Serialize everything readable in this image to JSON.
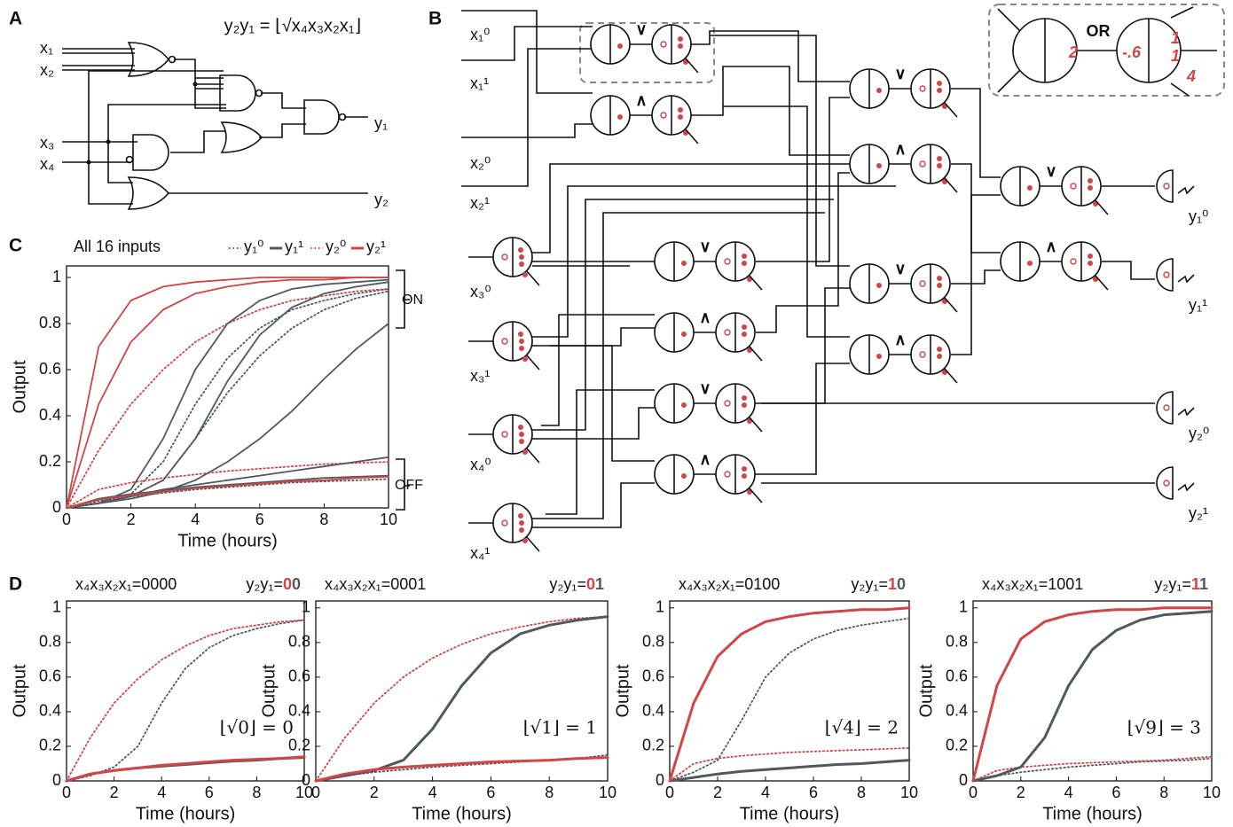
{
  "panel_labels": [
    "A",
    "B",
    "C",
    "D"
  ],
  "diagram_a": {
    "formula": "y₂y₁ = ⌊√x₄x₃x₂x₁⌋",
    "inputs": [
      "x₁",
      "x₂",
      "x₃",
      "x₄"
    ],
    "outputs": [
      "y₁",
      "y₂"
    ]
  },
  "diagram_b": {
    "inputs": [
      "x₁⁰",
      "x₁¹",
      "x₂⁰",
      "x₂¹",
      "x₃⁰",
      "x₃¹",
      "x₄⁰",
      "x₄¹"
    ],
    "outputs": [
      "y₁⁰",
      "y₁¹",
      "y₂⁰",
      "y₂¹"
    ],
    "gate_symbols": [
      "∨",
      "∧",
      "∨",
      "∧",
      "∨",
      "∧",
      "∨",
      "∧",
      "∨",
      "∧",
      "∨",
      "∧"
    ],
    "inset": {
      "title": "OR",
      "weights": [
        "2",
        "-.6",
        "1",
        "1",
        "4"
      ]
    }
  },
  "chart_data": [
    {
      "type": "line",
      "title": "All 16 inputs",
      "xlabel": "Time (hours)",
      "ylabel": "Output",
      "x": [
        0,
        1,
        2,
        3,
        4,
        5,
        6,
        7,
        8,
        9,
        10
      ],
      "xlim": [
        0,
        10
      ],
      "ylim": [
        0,
        1.05
      ],
      "xticks": [
        0,
        2,
        4,
        6,
        8,
        10
      ],
      "yticks": [
        0,
        0.2,
        0.4,
        0.6,
        0.8,
        1
      ],
      "annotations": [
        "ON",
        "OFF"
      ],
      "series": [
        {
          "name": "y₁⁰",
          "color": "#505860",
          "dash": "dotted",
          "curves": [
            [
              0,
              0.02,
              0.06,
              0.2,
              0.45,
              0.65,
              0.78,
              0.86,
              0.9,
              0.93,
              0.95
            ],
            [
              0,
              0.02,
              0.05,
              0.12,
              0.3,
              0.5,
              0.66,
              0.78,
              0.86,
              0.91,
              0.94
            ],
            [
              0,
              0.03,
              0.05,
              0.065,
              0.08,
              0.09,
              0.1,
              0.11,
              0.115,
              0.12,
              0.125
            ]
          ]
        },
        {
          "name": "y₁¹",
          "color": "#505860",
          "dash": "solid",
          "curves": [
            [
              0,
              0.02,
              0.08,
              0.3,
              0.6,
              0.8,
              0.9,
              0.95,
              0.97,
              0.98,
              0.99
            ],
            [
              0,
              0.02,
              0.05,
              0.12,
              0.3,
              0.55,
              0.75,
              0.87,
              0.93,
              0.96,
              0.98
            ],
            [
              0,
              0.02,
              0.04,
              0.07,
              0.12,
              0.2,
              0.3,
              0.42,
              0.56,
              0.69,
              0.8
            ],
            [
              0,
              0.04,
              0.06,
              0.075,
              0.09,
              0.1,
              0.11,
              0.12,
              0.13,
              0.135,
              0.14
            ],
            [
              0,
              0.02,
              0.05,
              0.08,
              0.1,
              0.12,
              0.14,
              0.16,
              0.18,
              0.2,
              0.22
            ]
          ]
        },
        {
          "name": "y₂⁰",
          "color": "#d04545",
          "dash": "dotted",
          "curves": [
            [
              0,
              0.25,
              0.45,
              0.6,
              0.72,
              0.8,
              0.86,
              0.9,
              0.92,
              0.94,
              0.95
            ],
            [
              0,
              0.08,
              0.11,
              0.13,
              0.145,
              0.16,
              0.17,
              0.18,
              0.19,
              0.195,
              0.2
            ]
          ]
        },
        {
          "name": "y₂¹",
          "color": "#d04545",
          "dash": "solid",
          "curves": [
            [
              0,
              0.7,
              0.9,
              0.96,
              0.98,
              0.99,
              1,
              1,
              1,
              1,
              1
            ],
            [
              0,
              0.45,
              0.72,
              0.86,
              0.93,
              0.96,
              0.98,
              0.99,
              0.99,
              1,
              1
            ],
            [
              0,
              0.035,
              0.055,
              0.07,
              0.085,
              0.095,
              0.105,
              0.115,
              0.12,
              0.13,
              0.135
            ]
          ]
        }
      ]
    },
    {
      "type": "line",
      "title": "x₄x₃x₂x₁=0000",
      "result_label": "y₂y₁=",
      "result_digits": [
        {
          "text": "0",
          "color": "#d04545"
        },
        {
          "text": "0",
          "color": "#505860"
        }
      ],
      "annotation": "⌊√0⌋ = 0",
      "xlabel": "Time (hours)",
      "ylabel": "Output",
      "x": [
        0,
        1,
        2,
        3,
        4,
        5,
        6,
        7,
        8,
        9,
        10
      ],
      "xlim": [
        0,
        10
      ],
      "ylim": [
        0,
        1.04
      ],
      "xticks": [
        0,
        2,
        4,
        6,
        8,
        10
      ],
      "yticks": [
        0,
        0.2,
        0.4,
        0.6,
        0.8,
        1
      ],
      "series": [
        {
          "color": "#505860",
          "dash": "dotted",
          "values": [
            0,
            0.03,
            0.08,
            0.2,
            0.45,
            0.65,
            0.77,
            0.84,
            0.88,
            0.91,
            0.93
          ]
        },
        {
          "color": "#d04545",
          "dash": "dotted",
          "values": [
            0,
            0.25,
            0.45,
            0.59,
            0.7,
            0.78,
            0.84,
            0.88,
            0.9,
            0.92,
            0.93
          ]
        },
        {
          "color": "#505860",
          "dash": "solid",
          "values": [
            0,
            0.04,
            0.06,
            0.075,
            0.085,
            0.095,
            0.105,
            0.115,
            0.12,
            0.13,
            0.135
          ]
        },
        {
          "color": "#d04545",
          "dash": "solid",
          "values": [
            0,
            0.04,
            0.06,
            0.075,
            0.09,
            0.1,
            0.11,
            0.12,
            0.125,
            0.13,
            0.14
          ]
        }
      ]
    },
    {
      "type": "line",
      "title": "x₄x₃x₂x₁=0001",
      "result_label": "y₂y₁=",
      "result_digits": [
        {
          "text": "0",
          "color": "#d04545"
        },
        {
          "text": "1",
          "color": "#505860"
        }
      ],
      "annotation": "⌊√1⌋ = 1",
      "xlabel": "Time (hours)",
      "ylabel": "Output",
      "x": [
        0,
        1,
        2,
        3,
        4,
        5,
        6,
        7,
        8,
        9,
        10
      ],
      "xlim": [
        0,
        10
      ],
      "ylim": [
        0,
        1.04
      ],
      "xticks": [
        0,
        2,
        4,
        6,
        8,
        10
      ],
      "yticks": [
        0,
        0.2,
        0.4,
        0.6,
        0.8,
        1
      ],
      "series": [
        {
          "color": "#505860",
          "dash": "dotted",
          "values": [
            0,
            0.03,
            0.05,
            0.065,
            0.08,
            0.09,
            0.1,
            0.11,
            0.12,
            0.13,
            0.15
          ]
        },
        {
          "color": "#d04545",
          "dash": "dotted",
          "values": [
            0,
            0.25,
            0.45,
            0.6,
            0.71,
            0.79,
            0.85,
            0.89,
            0.92,
            0.94,
            0.95
          ]
        },
        {
          "color": "#505860",
          "dash": "solid",
          "values": [
            0,
            0.03,
            0.06,
            0.12,
            0.3,
            0.55,
            0.74,
            0.85,
            0.9,
            0.93,
            0.95
          ]
        },
        {
          "color": "#d04545",
          "dash": "solid",
          "values": [
            0,
            0.04,
            0.065,
            0.08,
            0.09,
            0.1,
            0.11,
            0.115,
            0.12,
            0.13,
            0.135
          ]
        }
      ]
    },
    {
      "type": "line",
      "title": "x₄x₃x₂x₁=0100",
      "result_label": "y₂y₁=",
      "result_digits": [
        {
          "text": "1",
          "color": "#d04545"
        },
        {
          "text": "0",
          "color": "#505860"
        }
      ],
      "annotation": "⌊√4⌋ = 2",
      "xlabel": "Time (hours)",
      "ylabel": "Output",
      "x": [
        0,
        1,
        2,
        3,
        4,
        5,
        6,
        7,
        8,
        9,
        10
      ],
      "xlim": [
        0,
        10
      ],
      "ylim": [
        0,
        1.04
      ],
      "xticks": [
        0,
        2,
        4,
        6,
        8,
        10
      ],
      "yticks": [
        0,
        0.2,
        0.4,
        0.6,
        0.8,
        1
      ],
      "series": [
        {
          "color": "#505860",
          "dash": "dotted",
          "values": [
            0,
            0.05,
            0.12,
            0.35,
            0.6,
            0.74,
            0.82,
            0.87,
            0.9,
            0.92,
            0.94
          ]
        },
        {
          "color": "#d04545",
          "dash": "dotted",
          "values": [
            0,
            0.1,
            0.13,
            0.145,
            0.155,
            0.165,
            0.17,
            0.175,
            0.18,
            0.185,
            0.19
          ]
        },
        {
          "color": "#505860",
          "dash": "solid",
          "values": [
            0,
            0.02,
            0.04,
            0.055,
            0.065,
            0.075,
            0.085,
            0.095,
            0.1,
            0.11,
            0.12
          ]
        },
        {
          "color": "#d04545",
          "dash": "solid",
          "values": [
            0,
            0.45,
            0.72,
            0.85,
            0.92,
            0.95,
            0.97,
            0.98,
            0.99,
            0.99,
            1
          ]
        }
      ]
    },
    {
      "type": "line",
      "title": "x₄x₃x₂x₁=1001",
      "result_label": "y₂y₁=",
      "result_digits": [
        {
          "text": "1",
          "color": "#d04545"
        },
        {
          "text": "1",
          "color": "#505860"
        }
      ],
      "annotation": "⌊√9⌋ = 3",
      "xlabel": "Time (hours)",
      "ylabel": "Output",
      "x": [
        0,
        1,
        2,
        3,
        4,
        5,
        6,
        7,
        8,
        9,
        10
      ],
      "xlim": [
        0,
        10
      ],
      "ylim": [
        0,
        1.04
      ],
      "xticks": [
        0,
        2,
        4,
        6,
        8,
        10
      ],
      "yticks": [
        0,
        0.2,
        0.4,
        0.6,
        0.8,
        1
      ],
      "series": [
        {
          "color": "#505860",
          "dash": "dotted",
          "values": [
            0,
            0.03,
            0.05,
            0.065,
            0.08,
            0.09,
            0.1,
            0.11,
            0.115,
            0.12,
            0.13
          ]
        },
        {
          "color": "#d04545",
          "dash": "dotted",
          "values": [
            0,
            0.06,
            0.08,
            0.09,
            0.1,
            0.105,
            0.11,
            0.115,
            0.12,
            0.13,
            0.14
          ]
        },
        {
          "color": "#505860",
          "dash": "solid",
          "values": [
            0,
            0.03,
            0.08,
            0.25,
            0.55,
            0.76,
            0.87,
            0.93,
            0.96,
            0.97,
            0.98
          ]
        },
        {
          "color": "#d04545",
          "dash": "solid",
          "values": [
            0,
            0.55,
            0.82,
            0.92,
            0.96,
            0.98,
            0.99,
            0.99,
            1,
            1,
            1
          ]
        }
      ]
    }
  ]
}
